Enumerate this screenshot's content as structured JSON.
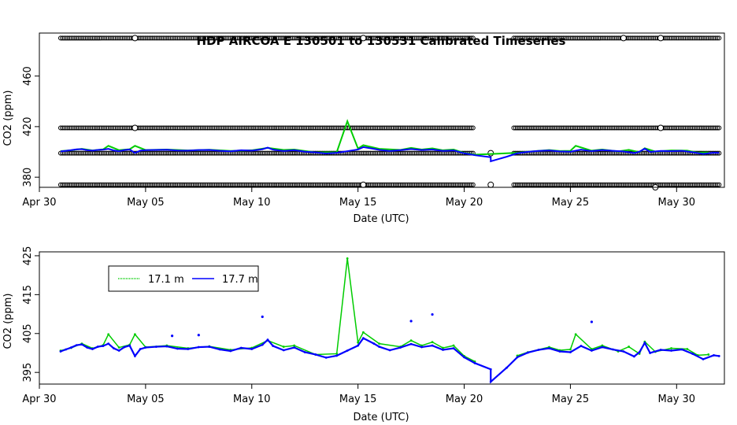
{
  "title": "HDP   AIRCOA  E    130501  to  130531   Calibrated Timeseries",
  "colors": {
    "series_17_1": "#00cc00",
    "series_17_7": "#0000ff",
    "reference": "#000000"
  },
  "chart_data": [
    {
      "type": "scatter",
      "title": "HDP   AIRCOA  E    130501  to  130531   Calibrated Timeseries",
      "xlabel": "Date (UTC)",
      "ylabel": "CO2 (ppm)",
      "x_ticks": [
        {
          "date": "2013-04-30",
          "label": "Apr 30"
        },
        {
          "date": "2013-05-05",
          "label": "May 05"
        },
        {
          "date": "2013-05-10",
          "label": "May 10"
        },
        {
          "date": "2013-05-15",
          "label": "May 15"
        },
        {
          "date": "2013-05-20",
          "label": "May 20"
        },
        {
          "date": "2013-05-25",
          "label": "May 25"
        },
        {
          "date": "2013-05-30",
          "label": "May 30"
        }
      ],
      "y_ticks": [
        380,
        420,
        460
      ],
      "xlim": [
        "2013-04-30T00:00",
        "2013-06-01T06:00"
      ],
      "ylim": [
        372,
        494
      ],
      "reference_levels_ppm": [
        374,
        399,
        419,
        490
      ],
      "reference_gaps": [
        [
          "2013-05-20T12:00",
          "2013-05-22T06:00"
        ]
      ],
      "reference_open_circles": [
        {
          "date": "2013-05-04T12:00",
          "value": 490
        },
        {
          "date": "2013-05-04T12:00",
          "value": 419
        },
        {
          "date": "2013-05-15T06:00",
          "value": 490
        },
        {
          "date": "2013-05-15T06:00",
          "value": 374
        },
        {
          "date": "2013-05-21T06:00",
          "value": 399
        },
        {
          "date": "2013-05-21T06:00",
          "value": 374
        },
        {
          "date": "2013-05-27T12:00",
          "value": 490
        },
        {
          "date": "2013-05-29T06:00",
          "value": 490
        },
        {
          "date": "2013-05-29T06:00",
          "value": 419
        },
        {
          "date": "2013-05-29T00:00",
          "value": 372
        }
      ],
      "grid": false
    },
    {
      "type": "line",
      "title": "",
      "xlabel": "Date (UTC)",
      "ylabel": "CO2 (ppm)",
      "x_ticks": [
        {
          "date": "2013-04-30",
          "label": "Apr 30"
        },
        {
          "date": "2013-05-05",
          "label": "May 05"
        },
        {
          "date": "2013-05-10",
          "label": "May 10"
        },
        {
          "date": "2013-05-15",
          "label": "May 15"
        },
        {
          "date": "2013-05-20",
          "label": "May 20"
        },
        {
          "date": "2013-05-25",
          "label": "May 25"
        },
        {
          "date": "2013-05-30",
          "label": "May 30"
        }
      ],
      "y_ticks": [
        395,
        405,
        415,
        425
      ],
      "xlim": [
        "2013-04-30T00:00",
        "2013-06-01T06:00"
      ],
      "ylim": [
        392,
        426
      ],
      "legend_position": "top-left",
      "grid": false,
      "series": [
        {
          "name": "17.1 m",
          "color": "#00cc00",
          "points": [
            [
              "2013-05-01T00:00",
              400.6
            ],
            [
              "2013-05-01T12:00",
              401.3
            ],
            [
              "2013-05-02T00:00",
              402.4
            ],
            [
              "2013-05-02T12:00",
              401.2
            ],
            [
              "2013-05-03T00:00",
              402.0
            ],
            [
              "2013-05-03T06:00",
              404.8
            ],
            [
              "2013-05-03T18:00",
              401.4
            ],
            [
              "2013-05-04T06:00",
              402.1
            ],
            [
              "2013-05-04T12:00",
              404.8
            ],
            [
              "2013-05-05T00:00",
              401.5
            ],
            [
              "2013-05-06T00:00",
              401.9
            ],
            [
              "2013-05-07T00:00",
              401.2
            ],
            [
              "2013-05-08T00:00",
              401.7
            ],
            [
              "2013-05-09T00:00",
              400.8
            ],
            [
              "2013-05-10T00:00",
              401.3
            ],
            [
              "2013-05-10T18:00",
              403.2
            ],
            [
              "2013-05-11T12:00",
              401.6
            ],
            [
              "2013-05-12T00:00",
              401.9
            ],
            [
              "2013-05-13T00:00",
              399.6
            ],
            [
              "2013-05-14T00:00",
              399.8
            ],
            [
              "2013-05-14T12:00",
              424.3
            ],
            [
              "2013-05-15T00:00",
              402.7
            ],
            [
              "2013-05-15T06:00",
              405.3
            ],
            [
              "2013-05-16T00:00",
              402.4
            ],
            [
              "2013-05-17T00:00",
              401.6
            ],
            [
              "2013-05-17T12:00",
              403.2
            ],
            [
              "2013-05-18T00:00",
              401.9
            ],
            [
              "2013-05-18T12:00",
              402.8
            ],
            [
              "2013-05-19T00:00",
              401.3
            ],
            [
              "2013-05-19T12:00",
              401.9
            ],
            [
              "2013-05-20T00:00",
              399.2
            ],
            [
              "2013-05-20T12:00",
              397.8
            ],
            [
              "2013-05-22T12:00",
              399.3
            ],
            [
              "2013-05-23T00:00",
              400.2
            ],
            [
              "2013-05-24T00:00",
              401.5
            ],
            [
              "2013-05-24T12:00",
              400.7
            ],
            [
              "2013-05-25T00:00",
              400.9
            ],
            [
              "2013-05-25T06:00",
              404.8
            ],
            [
              "2013-05-26T00:00",
              401.0
            ],
            [
              "2013-05-26T12:00",
              401.9
            ],
            [
              "2013-05-27T06:00",
              400.4
            ],
            [
              "2013-05-27T18:00",
              401.6
            ],
            [
              "2013-05-28T06:00",
              399.8
            ],
            [
              "2013-05-28T12:00",
              402.9
            ],
            [
              "2013-05-29T00:00",
              400.3
            ],
            [
              "2013-05-29T18:00",
              401.2
            ],
            [
              "2013-05-30T12:00",
              401.0
            ],
            [
              "2013-05-31T00:00",
              399.4
            ],
            [
              "2013-05-31T12:00",
              399.6
            ]
          ]
        },
        {
          "name": "17.7 m",
          "color": "#0000ff",
          "points": [
            [
              "2013-05-01T00:00",
              400.4
            ],
            [
              "2013-05-01T06:00",
              400.9
            ],
            [
              "2013-05-01T12:00",
              401.4
            ],
            [
              "2013-05-01T18:00",
              402.0
            ],
            [
              "2013-05-02T00:00",
              402.2
            ],
            [
              "2013-05-02T06:00",
              401.4
            ],
            [
              "2013-05-02T12:00",
              401.0
            ],
            [
              "2013-05-02T18:00",
              401.6
            ],
            [
              "2013-05-03T00:00",
              401.8
            ],
            [
              "2013-05-03T06:00",
              402.4
            ],
            [
              "2013-05-03T12:00",
              401.2
            ],
            [
              "2013-05-03T18:00",
              400.6
            ],
            [
              "2013-05-04T00:00",
              401.5
            ],
            [
              "2013-05-04T06:00",
              401.9
            ],
            [
              "2013-05-04T12:00",
              399.2
            ],
            [
              "2013-05-04T18:00",
              401.0
            ],
            [
              "2013-05-05T00:00",
              401.4
            ],
            [
              "2013-05-05T12:00",
              401.6
            ],
            [
              "2013-05-06T00:00",
              401.7
            ],
            [
              "2013-05-06T12:00",
              401.1
            ],
            [
              "2013-05-07T00:00",
              401.0
            ],
            [
              "2013-05-07T12:00",
              401.5
            ],
            [
              "2013-05-08T00:00",
              401.6
            ],
            [
              "2013-05-08T12:00",
              400.9
            ],
            [
              "2013-05-09T00:00",
              400.5
            ],
            [
              "2013-05-09T12:00",
              401.3
            ],
            [
              "2013-05-10T00:00",
              401.0
            ],
            [
              "2013-05-10T12:00",
              402.1
            ],
            [
              "2013-05-10T18:00",
              403.4
            ],
            [
              "2013-05-11T00:00",
              401.8
            ],
            [
              "2013-05-11T12:00",
              400.7
            ],
            [
              "2013-05-12T00:00",
              401.4
            ],
            [
              "2013-05-12T12:00",
              400.2
            ],
            [
              "2013-05-13T00:00",
              399.6
            ],
            [
              "2013-05-13T12:00",
              398.8
            ],
            [
              "2013-05-14T00:00",
              399.3
            ],
            [
              "2013-05-14T12:00",
              400.6
            ],
            [
              "2013-05-15T00:00",
              401.9
            ],
            [
              "2013-05-15T06:00",
              403.8
            ],
            [
              "2013-05-15T18:00",
              402.4
            ],
            [
              "2013-05-16T00:00",
              401.6
            ],
            [
              "2013-05-16T12:00",
              400.7
            ],
            [
              "2013-05-17T00:00",
              401.4
            ],
            [
              "2013-05-17T12:00",
              402.3
            ],
            [
              "2013-05-18T00:00",
              401.5
            ],
            [
              "2013-05-18T12:00",
              401.9
            ],
            [
              "2013-05-19T00:00",
              400.8
            ],
            [
              "2013-05-19T12:00",
              401.2
            ],
            [
              "2013-05-20T00:00",
              398.9
            ],
            [
              "2013-05-20T12:00",
              397.4
            ],
            [
              "2013-05-21T06:00",
              395.8
            ],
            [
              "2013-05-21T06:00",
              392.6
            ],
            [
              "2013-05-22T00:00",
              396.2
            ],
            [
              "2013-05-22T12:00",
              398.9
            ],
            [
              "2013-05-23T00:00",
              400.1
            ],
            [
              "2013-05-23T12:00",
              400.8
            ],
            [
              "2013-05-24T00:00",
              401.2
            ],
            [
              "2013-05-24T12:00",
              400.4
            ],
            [
              "2013-05-25T00:00",
              400.2
            ],
            [
              "2013-05-25T12:00",
              401.8
            ],
            [
              "2013-05-26T00:00",
              400.6
            ],
            [
              "2013-05-26T12:00",
              401.5
            ],
            [
              "2013-05-27T00:00",
              400.9
            ],
            [
              "2013-05-27T12:00",
              400.4
            ],
            [
              "2013-05-28T00:00",
              399.1
            ],
            [
              "2013-05-28T06:00",
              400.2
            ],
            [
              "2013-05-28T12:00",
              402.6
            ],
            [
              "2013-05-28T18:00",
              400.0
            ],
            [
              "2013-05-29T06:00",
              400.8
            ],
            [
              "2013-05-29T18:00",
              400.6
            ],
            [
              "2013-05-30T06:00",
              400.9
            ],
            [
              "2013-05-30T18:00",
              399.8
            ],
            [
              "2013-05-31T06:00",
              398.4
            ],
            [
              "2013-05-31T18:00",
              399.4
            ],
            [
              "2013-06-01T00:00",
              399.2
            ]
          ],
          "outliers": [
            [
              "2013-05-10T12:00",
              409.3
            ],
            [
              "2013-05-17T12:00",
              408.2
            ],
            [
              "2013-05-18T12:00",
              409.9
            ],
            [
              "2013-05-26T00:00",
              408.0
            ],
            [
              "2013-05-07T12:00",
              404.6
            ],
            [
              "2013-05-06T06:00",
              404.4
            ]
          ]
        }
      ]
    }
  ]
}
